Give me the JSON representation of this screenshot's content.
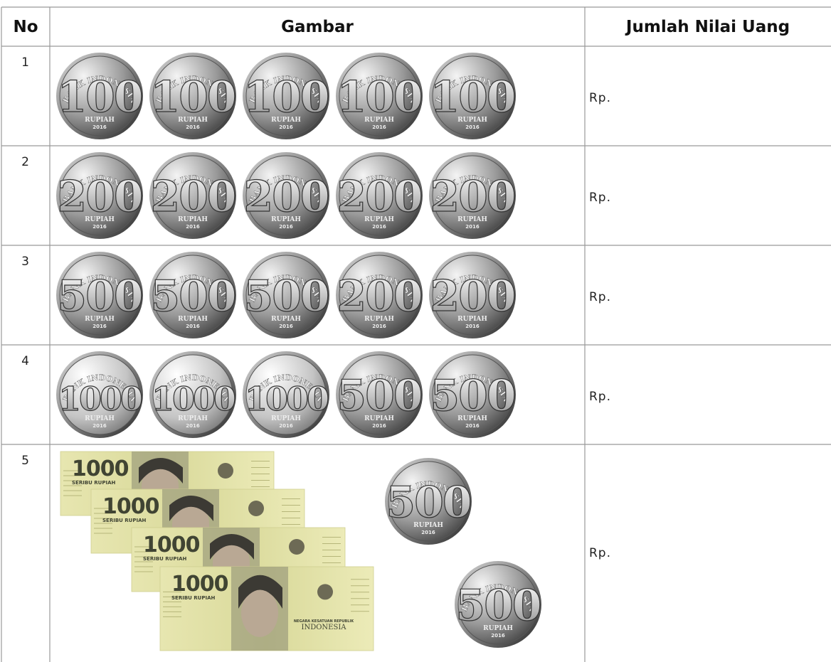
{
  "header": {
    "no": "No",
    "image": "Gambar",
    "amount": "Jumlah Nilai Uang"
  },
  "rows": [
    {
      "no": "1",
      "coins": [
        {
          "issuer": "BANK INDONESIA",
          "denomination": "100",
          "currency": "RUPIAH",
          "year": "2016"
        },
        {
          "issuer": "BANK INDONESIA",
          "denomination": "100",
          "currency": "RUPIAH",
          "year": "2016"
        },
        {
          "issuer": "BANK INDONESIA",
          "denomination": "100",
          "currency": "RUPIAH",
          "year": "2016"
        },
        {
          "issuer": "BANK INDONESIA",
          "denomination": "100",
          "currency": "RUPIAH",
          "year": "2016"
        },
        {
          "issuer": "BANK INDONESIA",
          "denomination": "100",
          "currency": "RUPIAH",
          "year": "2016"
        }
      ],
      "amount": "Rp."
    },
    {
      "no": "2",
      "coins": [
        {
          "issuer": "BANK INDONESIA",
          "denomination": "200",
          "currency": "RUPIAH",
          "year": "2016"
        },
        {
          "issuer": "BANK INDONESIA",
          "denomination": "200",
          "currency": "RUPIAH",
          "year": "2016"
        },
        {
          "issuer": "BANK INDONESIA",
          "denomination": "200",
          "currency": "RUPIAH",
          "year": "2016"
        },
        {
          "issuer": "BANK INDONESIA",
          "denomination": "200",
          "currency": "RUPIAH",
          "year": "2016"
        },
        {
          "issuer": "BANK INDONESIA",
          "denomination": "200",
          "currency": "RUPIAH",
          "year": "2016"
        }
      ],
      "amount": "Rp."
    },
    {
      "no": "3",
      "coins": [
        {
          "issuer": "BANK INDONESIA",
          "denomination": "500",
          "currency": "RUPIAH",
          "year": "2016"
        },
        {
          "issuer": "BANK INDONESIA",
          "denomination": "500",
          "currency": "RUPIAH",
          "year": "2016"
        },
        {
          "issuer": "BANK INDONESIA",
          "denomination": "500",
          "currency": "RUPIAH",
          "year": "2016"
        },
        {
          "issuer": "BANK INDONESIA",
          "denomination": "200",
          "currency": "RUPIAH",
          "year": "2016"
        },
        {
          "issuer": "BANK INDONESIA",
          "denomination": "200",
          "currency": "RUPIAH",
          "year": "2016"
        }
      ],
      "amount": "Rp."
    },
    {
      "no": "4",
      "coins": [
        {
          "issuer": "BANK INDONESIA",
          "denomination": "1000",
          "currency": "RUPIAH",
          "year": "2016"
        },
        {
          "issuer": "BANK INDONESIA",
          "denomination": "1000",
          "currency": "RUPIAH",
          "year": "2016"
        },
        {
          "issuer": "BANK INDONESIA",
          "denomination": "1000",
          "currency": "RUPIAH",
          "year": "2016"
        },
        {
          "issuer": "BANK INDONESIA",
          "denomination": "500",
          "currency": "RUPIAH",
          "year": "2016"
        },
        {
          "issuer": "BANK INDONESIA",
          "denomination": "500",
          "currency": "RUPIAH",
          "year": "2016"
        }
      ],
      "amount": "Rp."
    },
    {
      "no": "5",
      "notes": [
        {
          "denomination": "1000",
          "words": "SERIBU RUPIAH"
        },
        {
          "denomination": "1000",
          "words": "SERIBU RUPIAH"
        },
        {
          "denomination": "1000",
          "words": "SERIBU RUPIAH"
        },
        {
          "denomination": "1000",
          "words": "SERIBU RUPIAH",
          "state": "NEGARA KESATUAN REPUBLIK",
          "country": "INDONESIA"
        }
      ],
      "coins": [
        {
          "issuer": "BANK INDONESIA",
          "denomination": "500",
          "currency": "RUPIAH",
          "year": "2016"
        },
        {
          "issuer": "BANK INDONESIA",
          "denomination": "500",
          "currency": "RUPIAH",
          "year": "2016"
        }
      ],
      "amount": "Rp."
    }
  ]
}
